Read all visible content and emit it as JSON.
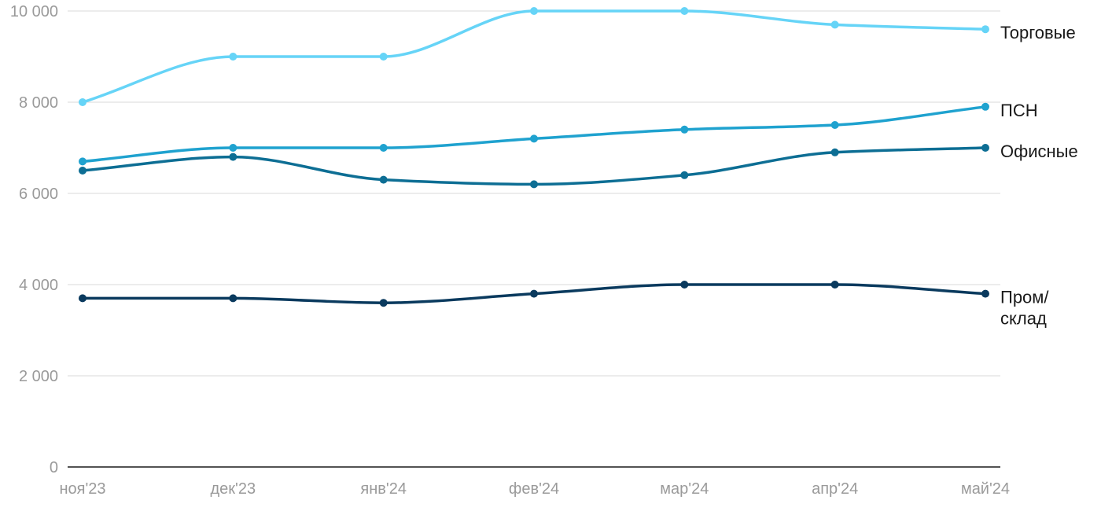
{
  "chart_data": {
    "type": "line",
    "categories": [
      "ноя'23",
      "дек'23",
      "янв'24",
      "фев'24",
      "мар'24",
      "апр'24",
      "май'24"
    ],
    "ylim": [
      0,
      10000
    ],
    "yticks": [
      0,
      2000,
      4000,
      6000,
      8000,
      10000
    ],
    "ytick_labels": [
      "0",
      "2 000",
      "4 000",
      "6 000",
      "8 000",
      "10 000"
    ],
    "grid": true,
    "legend": "inline-right",
    "series": [
      {
        "name": "Торговые",
        "label_lines": [
          "Торговые"
        ],
        "color": "#66d4f7",
        "values": [
          8000,
          9000,
          9000,
          10000,
          10000,
          9700,
          9600
        ]
      },
      {
        "name": "ПСН",
        "label_lines": [
          "ПСН"
        ],
        "color": "#1fa2cf",
        "values": [
          6700,
          7000,
          7000,
          7200,
          7400,
          7500,
          7900
        ]
      },
      {
        "name": "Офисные",
        "label_lines": [
          "Офисные"
        ],
        "color": "#0d6e94",
        "values": [
          6500,
          6800,
          6300,
          6200,
          6400,
          6900,
          7000
        ]
      },
      {
        "name": "Пром/склад",
        "label_lines": [
          "Пром/",
          "склад"
        ],
        "color": "#0a3a5e",
        "values": [
          3700,
          3700,
          3600,
          3800,
          4000,
          4000,
          3800
        ]
      }
    ]
  }
}
